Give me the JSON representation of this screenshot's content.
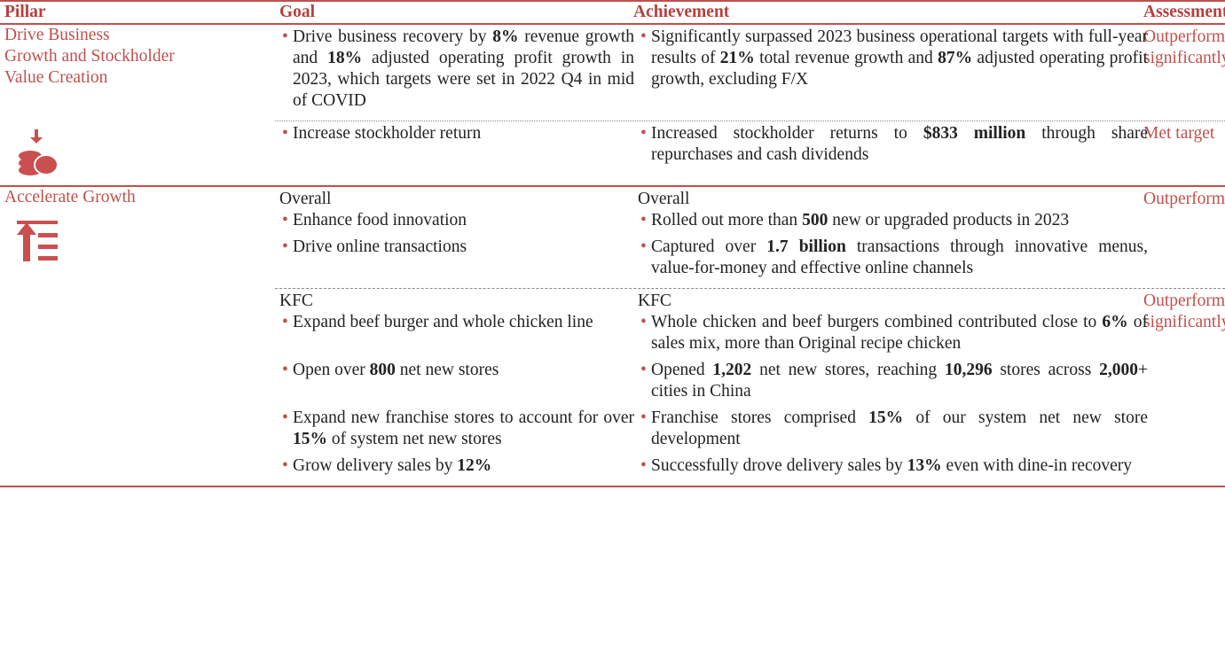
{
  "header": {
    "columns": [
      "Pillar",
      "Goal",
      "Achievement",
      "Assessment"
    ]
  },
  "pillars": [
    {
      "name": [
        "Drive Business",
        "Growth and Stockholder",
        "Value Creation"
      ],
      "icon": "coins",
      "groups": [
        {
          "assessment": "Outperformed significantly",
          "rows": [
            {
              "goal": [
                "Drive business recovery by ",
                {
                  "text": "8%",
                  "bold": true
                },
                " revenue growth and ",
                {
                  "text": "18%",
                  "bold": true
                },
                " adjusted operating profit growth in 2023, which targets were set in 2022 Q4 in mid of COVID"
              ],
              "achievement": [
                "Significantly surpassed 2023 business operational targets with full-year results of ",
                {
                  "text": "21%",
                  "bold": true
                },
                " total revenue growth and ",
                {
                  "text": "87%",
                  "bold": true
                },
                " adjusted operating profit growth, excluding F/X"
              ]
            }
          ]
        },
        {
          "assessment": "Met target",
          "rows": [
            {
              "goal": [
                "Increase stockholder return"
              ],
              "achievement": [
                "Increased stockholder returns to ",
                {
                  "text": "$833 million",
                  "bold": true
                },
                " through share repurchases and cash dividends"
              ]
            }
          ]
        }
      ]
    },
    {
      "name": [
        "Accelerate Growth"
      ],
      "icon": "list",
      "groups": [
        {
          "label": "Overall",
          "assessment": "Outperformed",
          "rows": [
            {
              "goal": [
                "Enhance food innovation"
              ],
              "achievement": [
                "Rolled out more than ",
                {
                  "text": "500",
                  "bold": true
                },
                " new or upgraded products in 2023"
              ]
            },
            {
              "goal": [
                "Drive online transactions"
              ],
              "achievement": [
                "Captured over ",
                {
                  "text": "1.7 billion",
                  "bold": true
                },
                " transactions through innovative menus, value-for-money and effective online channels"
              ]
            }
          ]
        },
        {
          "label": "KFC",
          "assessment": "Outperformed significantly",
          "rows": [
            {
              "goal": [
                "Expand beef burger and whole chicken line"
              ],
              "achievement": [
                "Whole chicken and beef burgers combined contributed close to ",
                {
                  "text": "6%",
                  "bold": true
                },
                " of sales mix, more than Original recipe chicken"
              ]
            },
            {
              "goal": [
                "Open over ",
                {
                  "text": "800",
                  "bold": true
                },
                " net new stores"
              ],
              "achievement": [
                "Opened ",
                {
                  "text": "1,202",
                  "bold": true
                },
                " net new stores, reaching ",
                {
                  "text": "10,296",
                  "bold": true
                },
                " stores across ",
                {
                  "text": "2,000",
                  "bold": true
                },
                "+ cities in China"
              ]
            },
            {
              "goal": [
                "Expand new franchise stores to account for over ",
                {
                  "text": "15%",
                  "bold": true
                },
                " of system net new stores"
              ],
              "achievement": [
                "Franchise stores comprised ",
                {
                  "text": "15%",
                  "bold": true
                },
                " of our system net new store development"
              ]
            },
            {
              "goal": [
                "Grow delivery sales by ",
                {
                  "text": "12%",
                  "bold": true
                }
              ],
              "achievement": [
                "Successfully drove delivery sales by ",
                {
                  "text": "13%",
                  "bold": true
                },
                " even with dine-in recovery"
              ]
            }
          ]
        }
      ]
    }
  ]
}
